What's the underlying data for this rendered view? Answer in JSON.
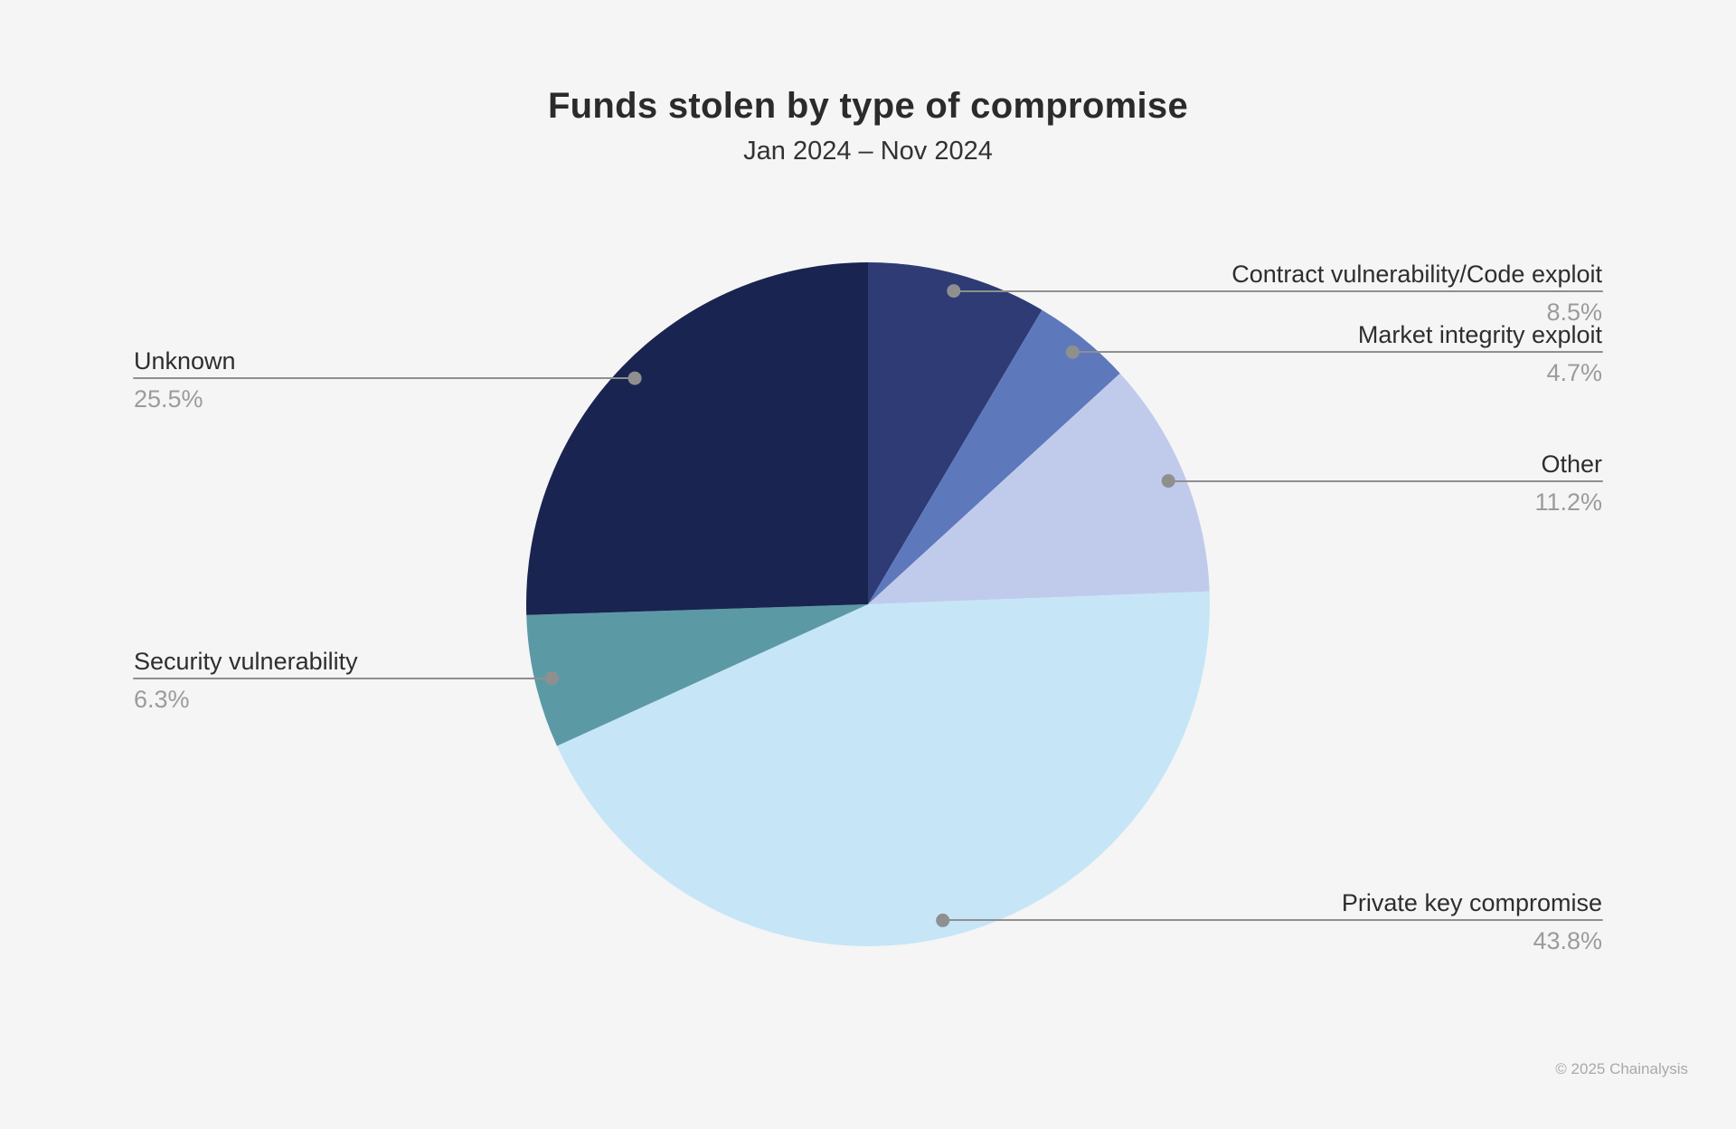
{
  "chart_data": {
    "type": "pie",
    "title": "Funds stolen by type of compromise",
    "subtitle": "Jan 2024 – Nov 2024",
    "start_angle_deg": 0,
    "direction": "clockwise",
    "total_pct": 100,
    "segments": [
      {
        "label": "Contract vulnerability/Code exploit",
        "value": 8.5,
        "pct_label": "8.5%",
        "color": "#2e3b74"
      },
      {
        "label": "Market integrity exploit",
        "value": 4.7,
        "pct_label": "4.7%",
        "color": "#5e78bc"
      },
      {
        "label": "Other",
        "value": 11.2,
        "pct_label": "11.2%",
        "color": "#c0cbec"
      },
      {
        "label": "Private key compromise",
        "value": 43.8,
        "pct_label": "43.8%",
        "color": "#c6e6f7"
      },
      {
        "label": "Security vulnerability",
        "value": 6.3,
        "pct_label": "6.3%",
        "color": "#5b9aa5"
      },
      {
        "label": "Unknown",
        "value": 25.5,
        "pct_label": "25.5%",
        "color": "#1a2450"
      }
    ],
    "legend_position": "callouts",
    "grid": false,
    "colors": {
      "background": "#f5f5f6",
      "callout_line": "#8f8f8f",
      "label_text": "#2e2e2e",
      "pct_text": "#9b9b9b"
    },
    "footer": "© 2025 Chainalysis"
  }
}
